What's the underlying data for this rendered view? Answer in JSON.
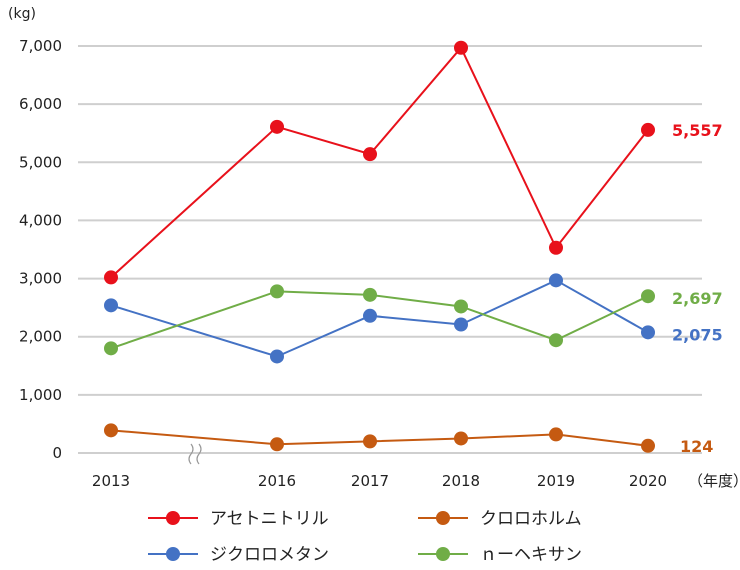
{
  "chart_data": {
    "type": "line",
    "y_unit": "(kg)",
    "x_unit": "（年度）",
    "categories": [
      "2013",
      "2016",
      "2017",
      "2018",
      "2019",
      "2020"
    ],
    "ylim": [
      0,
      7000
    ],
    "yticks": [
      0,
      1000,
      2000,
      3000,
      4000,
      5000,
      6000,
      7000
    ],
    "ytick_labels": [
      "0",
      "1,000",
      "2,000",
      "3,000",
      "4,000",
      "5,000",
      "6,000",
      "7,000"
    ],
    "grid": true,
    "axis_break": "between 2013 and 2016",
    "legend_position": "bottom",
    "series": [
      {
        "name": "アセトニトリル",
        "color": "#e8111b",
        "values": [
          3020,
          5610,
          5140,
          6970,
          3530,
          5557
        ],
        "end_label": "5,557"
      },
      {
        "name": "クロロホルム",
        "color": "#c55a11",
        "values": [
          390,
          150,
          200,
          250,
          320,
          124
        ],
        "end_label": "124"
      },
      {
        "name": "ジクロロメタン",
        "color": "#4472c4",
        "values": [
          2540,
          1660,
          2360,
          2210,
          2970,
          2075
        ],
        "end_label": "2,075"
      },
      {
        "name": "ｎーヘキサン",
        "color": "#70ad47",
        "values": [
          1800,
          2780,
          2720,
          2520,
          1940,
          2697
        ],
        "end_label": "2,697"
      }
    ]
  }
}
